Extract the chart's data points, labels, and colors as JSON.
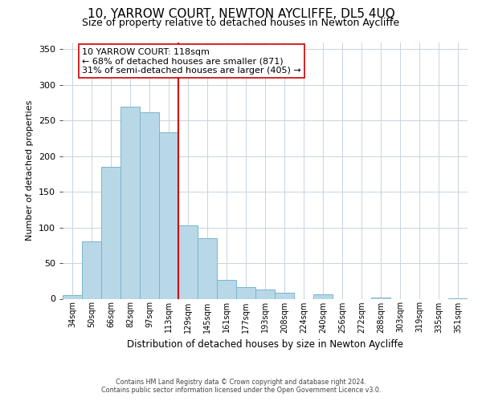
{
  "title": "10, YARROW COURT, NEWTON AYCLIFFE, DL5 4UQ",
  "subtitle": "Size of property relative to detached houses in Newton Aycliffe",
  "bar_labels": [
    "34sqm",
    "50sqm",
    "66sqm",
    "82sqm",
    "97sqm",
    "113sqm",
    "129sqm",
    "145sqm",
    "161sqm",
    "177sqm",
    "193sqm",
    "208sqm",
    "224sqm",
    "240sqm",
    "256sqm",
    "272sqm",
    "288sqm",
    "303sqm",
    "319sqm",
    "335sqm",
    "351sqm"
  ],
  "bar_values": [
    5,
    81,
    185,
    269,
    261,
    233,
    103,
    85,
    27,
    16,
    13,
    8,
    0,
    6,
    0,
    0,
    2,
    0,
    0,
    0,
    1
  ],
  "bar_color": "#b8d8e8",
  "bar_edge_color": "#7ab4cc",
  "xlabel": "Distribution of detached houses by size in Newton Aycliffe",
  "ylabel": "Number of detached properties",
  "ylim": [
    0,
    360
  ],
  "yticks": [
    0,
    50,
    100,
    150,
    200,
    250,
    300,
    350
  ],
  "property_label": "10 YARROW COURT: 118sqm",
  "annotation_line1": "← 68% of detached houses are smaller (871)",
  "annotation_line2": "31% of semi-detached houses are larger (405) →",
  "vline_color": "#cc0000",
  "footer_line1": "Contains HM Land Registry data © Crown copyright and database right 2024.",
  "footer_line2": "Contains public sector information licensed under the Open Government Licence v3.0.",
  "background_color": "#ffffff",
  "grid_color": "#c8d4e0",
  "title_fontsize": 11,
  "subtitle_fontsize": 9,
  "annotation_fontsize": 8
}
